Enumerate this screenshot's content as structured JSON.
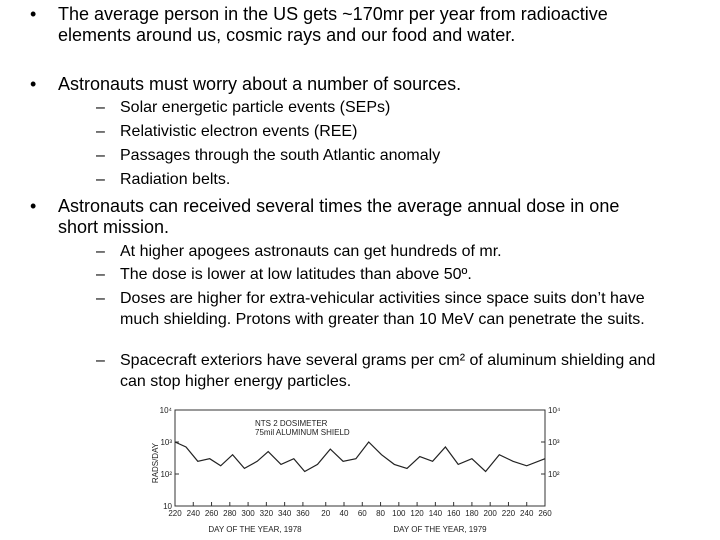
{
  "bullets": [
    {
      "text": "The average person in the US gets ~170mr per year from radioactive elements around us, cosmic rays and our food and water.",
      "items": []
    },
    {
      "text": "Astronauts must worry about a number of sources.",
      "items": [
        "Solar energetic particle events (SEPs)",
        "Relativistic electron events (REE)",
        "Passages through the south Atlantic anomaly",
        "Radiation belts."
      ]
    },
    {
      "text": "Astronauts can received several times the average annual dose in one short mission.",
      "items": [
        "At higher apogees astronauts can get hundreds of mr.",
        "The dose is lower at low latitudes than above 50º.",
        "Doses are higher for extra-vehicular activities since space suits don’t have much shielding. Protons with greater than 10 MeV can penetrate the suits.",
        "Spacecraft exteriors have several grams per cm² of aluminum shielding and can stop higher energy particles."
      ]
    }
  ],
  "chart_data": {
    "type": "line",
    "title": "NTS 2 DOSIMETER",
    "subtitle": "75mil ALUMINUM SHIELD",
    "y_label": "RADS/DAY",
    "x_labels": [
      "DAY OF THE YEAR, 1978",
      "DAY OF THE YEAR, 1979"
    ],
    "log_y": true,
    "x": [
      220,
      232,
      245,
      258,
      270,
      283,
      296,
      310,
      322,
      336,
      350,
      362,
      376,
      390,
      404,
      418,
      432,
      446,
      460,
      474,
      488,
      502,
      516,
      530,
      545,
      560,
      575,
      590,
      605,
      625
    ],
    "series": [
      {
        "name": "NTS 2",
        "color": "#222222",
        "values": [
          1000,
          700,
          250,
          300,
          180,
          400,
          150,
          250,
          500,
          200,
          300,
          120,
          200,
          600,
          250,
          300,
          1000,
          400,
          200,
          150,
          350,
          250,
          700,
          200,
          300,
          120,
          400,
          250,
          180,
          300
        ]
      }
    ],
    "xlim": [
      220,
      625
    ],
    "xticks": [
      220,
      240,
      260,
      280,
      300,
      320,
      340,
      360,
      {
        "value": 385,
        "label": "20"
      },
      {
        "value": 405,
        "label": "40"
      },
      {
        "value": 425,
        "label": "60"
      },
      {
        "value": 445,
        "label": "80"
      },
      {
        "value": 465,
        "label": "100"
      },
      {
        "value": 485,
        "label": "120"
      },
      {
        "value": 505,
        "label": "140"
      },
      {
        "value": 525,
        "label": "160"
      },
      {
        "value": 545,
        "label": "180"
      },
      {
        "value": 565,
        "label": "200"
      },
      {
        "value": 585,
        "label": "220"
      },
      {
        "value": 605,
        "label": "240"
      },
      {
        "value": 625,
        "label": "260"
      }
    ],
    "ylim": [
      10,
      10000
    ],
    "yticks": [
      {
        "value": 10000,
        "label": "10⁴"
      },
      {
        "value": 1000,
        "label": "10³"
      },
      {
        "value": 100,
        "label": "10²"
      },
      10
    ],
    "y2ticks": [
      {
        "value": 10000,
        "label": "10⁴"
      },
      {
        "value": 1000,
        "label": "10³"
      },
      {
        "value": 100,
        "label": "10²"
      }
    ]
  }
}
